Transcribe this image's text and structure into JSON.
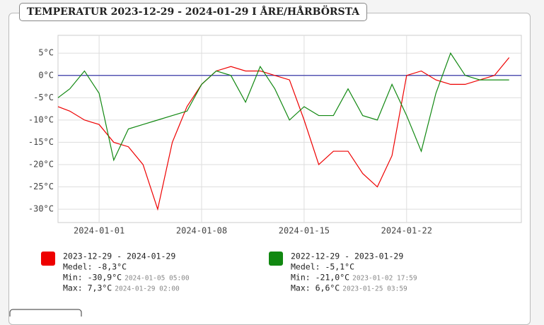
{
  "chart_data": {
    "type": "line",
    "title": "TEMPERATUR 2023-12-29 - 2024-01-29 I ÅRE/HÅRBÖRSTA",
    "x": [
      "2023-12-29",
      "2023-12-30",
      "2023-12-31",
      "2024-01-01",
      "2024-01-02",
      "2024-01-03",
      "2024-01-04",
      "2024-01-05",
      "2024-01-06",
      "2024-01-07",
      "2024-01-08",
      "2024-01-09",
      "2024-01-10",
      "2024-01-11",
      "2024-01-12",
      "2024-01-13",
      "2024-01-14",
      "2024-01-15",
      "2024-01-16",
      "2024-01-17",
      "2024-01-18",
      "2024-01-19",
      "2024-01-20",
      "2024-01-21",
      "2024-01-22",
      "2024-01-23",
      "2024-01-24",
      "2024-01-25",
      "2024-01-26",
      "2024-01-27",
      "2024-01-28",
      "2024-01-29"
    ],
    "xticks": [
      "2024-01-01",
      "2024-01-08",
      "2024-01-15",
      "2024-01-22"
    ],
    "ylim": [
      -33,
      9
    ],
    "yticks": [
      {
        "value": 5,
        "label": "5°C"
      },
      {
        "value": 0,
        "label": "0°C"
      },
      {
        "value": -5,
        "label": "-5°C"
      },
      {
        "value": -10,
        "label": "-10°C"
      },
      {
        "value": -15,
        "label": "-15°C"
      },
      {
        "value": -20,
        "label": "-20°C"
      },
      {
        "value": -25,
        "label": "-25°C"
      },
      {
        "value": -30,
        "label": "-30°C"
      }
    ],
    "grid": true,
    "reference_line": {
      "value": 0,
      "color": "#3a3aa8"
    },
    "series": [
      {
        "name": "2023-12-29 - 2024-01-29",
        "color": "#ee0000",
        "values": [
          -7,
          -8,
          -10,
          -11,
          -15,
          -16,
          -20,
          -30,
          -15,
          -7,
          -2,
          1,
          2,
          1,
          1,
          0,
          -1,
          -10,
          -20,
          -17,
          -17,
          -22,
          -25,
          -18,
          0,
          1,
          -1,
          -2,
          -2,
          -1,
          0,
          4
        ],
        "stats": [
          "Medel: -8,3°C",
          "Min: -30,9°C",
          "Max: 7,3°C"
        ],
        "stat_times": [
          null,
          "2024-01-05 05:00",
          "2024-01-29 02:00"
        ]
      },
      {
        "name": "2022-12-29 - 2023-01-29",
        "color": "#118811",
        "values": [
          -5,
          -3,
          1,
          -4,
          -19,
          -12,
          -11,
          -10,
          -9,
          -8,
          -2,
          1,
          0,
          -6,
          2,
          -3,
          -10,
          -7,
          -9,
          -9,
          -3,
          -9,
          -10,
          -2,
          -9,
          -17,
          -4,
          5,
          0,
          -1,
          -1,
          -1
        ],
        "stats": [
          "Medel: -5,1°C",
          "Min: -21,0°C",
          "Max: 6,6°C"
        ],
        "stat_times": [
          null,
          "2023-01-02 17:59",
          "2023-01-25 03:59"
        ]
      }
    ]
  }
}
